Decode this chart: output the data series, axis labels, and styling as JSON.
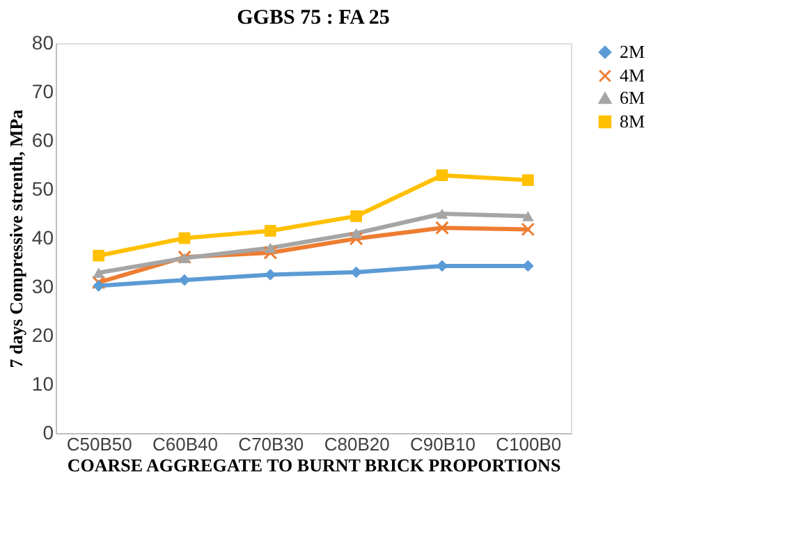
{
  "chart_data": {
    "type": "line",
    "title": "GGBS 75 : FA 25",
    "xlabel": "COARSE AGGREGATE TO BURNT BRICK PROPORTIONS",
    "ylabel": "7 days Compressive strenth, MPa",
    "categories": [
      "C50B50",
      "C60B40",
      "C70B30",
      "C80B20",
      "C90B10",
      "C100B0"
    ],
    "series": [
      {
        "name": "2M",
        "color": "#5b9bd5",
        "marker": "diamond",
        "values": [
          30.2,
          31.4,
          32.5,
          33.0,
          34.3,
          34.3
        ]
      },
      {
        "name": "4M",
        "color": "#ed7d31",
        "marker": "cross",
        "values": [
          30.9,
          36.1,
          37.0,
          39.9,
          42.1,
          41.8
        ]
      },
      {
        "name": "6M",
        "color": "#a5a5a5",
        "marker": "triangle",
        "values": [
          32.9,
          35.9,
          38.0,
          41.0,
          45.0,
          44.5
        ]
      },
      {
        "name": "8M",
        "color": "#ffc000",
        "marker": "square",
        "values": [
          36.4,
          40.0,
          41.5,
          44.5,
          52.9,
          51.9
        ]
      }
    ],
    "ylim": [
      0,
      80
    ],
    "yticks": [
      0,
      10,
      20,
      30,
      40,
      50,
      60,
      70,
      80
    ],
    "grid": false,
    "legend": "right",
    "line_style": "solid"
  }
}
